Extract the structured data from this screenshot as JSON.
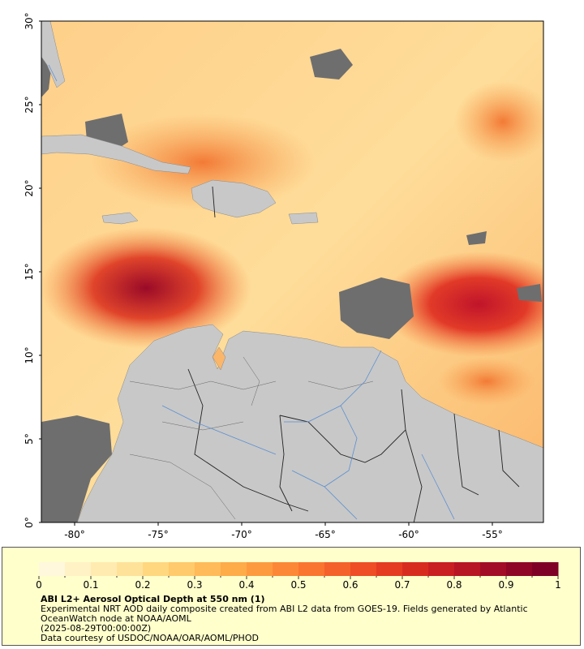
{
  "map": {
    "lat_ticks": [
      "0°",
      "5°",
      "10°",
      "15°",
      "20°",
      "25°",
      "30°"
    ],
    "lon_ticks": [
      "-80°",
      "-75°",
      "-70°",
      "-65°",
      "-60°",
      "-55°"
    ],
    "colors": {
      "no_data": "#6e6e6e",
      "land": "#c8c8c8",
      "rivers": "#5b8fd0",
      "borders": "#222222",
      "aod_low": "#fff5d6",
      "aod_high": "#7f0026"
    }
  },
  "colorbar": {
    "ticks": [
      "0",
      "0.1",
      "0.2",
      "0.3",
      "0.4",
      "0.5",
      "0.6",
      "0.7",
      "0.8",
      "0.9",
      "1"
    ],
    "stops": [
      "#fff8dc",
      "#fff2c4",
      "#ffebb0",
      "#ffe29a",
      "#ffd77f",
      "#ffca6b",
      "#ffbb59",
      "#feab4a",
      "#fd9a3f",
      "#fc8837",
      "#fa7530",
      "#f5612a",
      "#ee4d25",
      "#e43b22",
      "#d82b20",
      "#c91e22",
      "#b71424",
      "#a30c26",
      "#8f0526",
      "#7f0026"
    ]
  },
  "caption": {
    "title": "ABI L2+ Aerosol Optical Depth at 550 nm (1)",
    "description": "Experimental NRT AOD daily composite created from ABI L2 data from GOES-19. Fields generated by Atlantic OceanWatch node at NOAA/AOML",
    "datetime": "(2025-08-29T00:00:00Z)",
    "credit": "Data courtesy of USDOC/NOAA/OAR/AOML/PHOD"
  }
}
